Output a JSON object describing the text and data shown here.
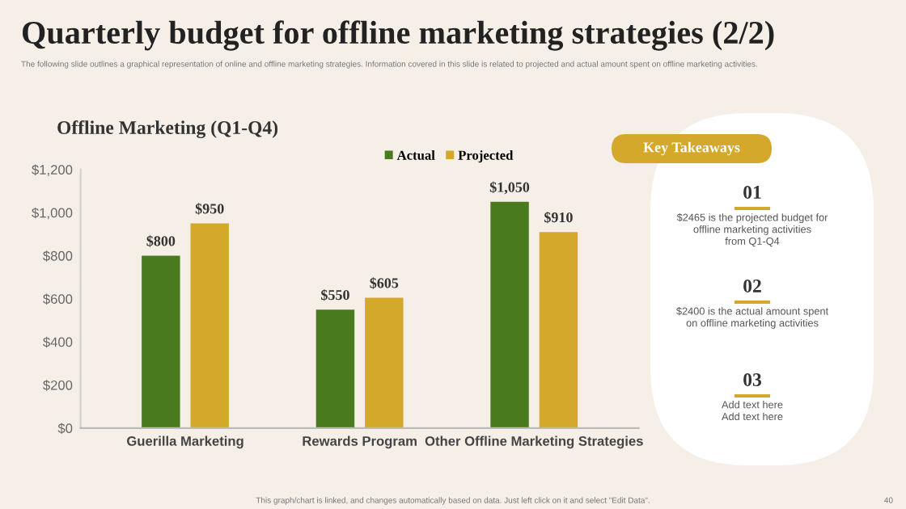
{
  "chart_data": [
    {
      "type": "bar",
      "title": "Offline Marketing (Q1-Q4)",
      "subtitle": "Quarterly budget for offline marketing strategies (2/2)",
      "annotations": [
        "The following slide outlines a graphical representation of online and offline marketing strategies. Information covered in this slide is related to projected and actual amount spent on offline marketing activities.",
        "This graph/chart is linked, and changes automatically based on data. Just left click on it and select \"Edit Data\".",
        "40"
      ],
      "categories": [
        "Guerilla Marketing",
        "Rewards Program",
        "Other Offline Marketing Strategies"
      ],
      "series": [
        {
          "name": "Actual",
          "color": "#4a7a1e",
          "values": [
            800,
            550,
            1050
          ],
          "value_labels": [
            "$800",
            "$550",
            "$1,050"
          ]
        },
        {
          "name": "Projected",
          "color": "#d4a82a",
          "values": [
            950,
            605,
            910
          ],
          "value_labels": [
            "$950",
            "$605",
            "$910"
          ]
        }
      ],
      "ylim": [
        0,
        1200
      ],
      "yticks": [
        {
          "value": 0,
          "label": "$0"
        },
        {
          "value": 200,
          "label": "$200"
        },
        {
          "value": 400,
          "label": "$400"
        },
        {
          "value": 600,
          "label": "$600"
        },
        {
          "value": 800,
          "label": "$800"
        },
        {
          "value": 1000,
          "label": "$1,000"
        },
        {
          "value": 1200,
          "label": "$1,200"
        }
      ],
      "legend": "top",
      "grid": false
    },
    {
      "type": "other",
      "title": "Key Takeaways",
      "annotations": [
        "01",
        "$2465 is the projected budget for\noffline marketing activities\nfrom Q1-Q4",
        "02",
        "$2400 is the actual amount spent\non offline marketing activities",
        "03",
        "Add text here\nAdd text here"
      ]
    }
  ]
}
